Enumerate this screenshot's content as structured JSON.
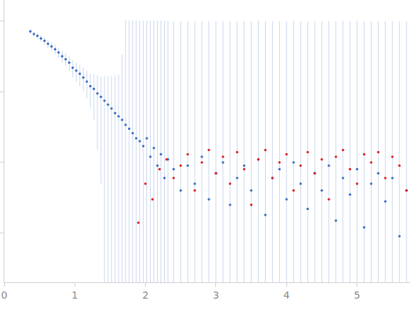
{
  "chart_data": {
    "type": "scatter",
    "log": "y",
    "grid": false,
    "tick_labels": "x",
    "xlim": [
      0,
      5.75
    ],
    "xticks": [
      0,
      1,
      2,
      3,
      4,
      5
    ],
    "ylim": [
      0.0002,
      2
    ],
    "yticks": [
      0.001,
      0.01,
      0.1,
      1
    ],
    "series": [
      {
        "color": "#3a6fc4",
        "marker": "circle",
        "x": [
          0.37,
          0.42,
          0.47,
          0.52,
          0.57,
          0.62,
          0.67,
          0.72,
          0.77,
          0.82,
          0.87,
          0.92,
          0.97,
          1.02,
          1.07,
          1.12,
          1.17,
          1.22,
          1.27,
          1.32,
          1.37,
          1.42,
          1.47,
          1.52,
          1.57,
          1.62,
          1.67,
          1.72,
          1.77,
          1.82,
          1.87,
          1.92,
          1.97,
          2.02,
          2.07,
          2.12,
          2.17,
          2.22,
          2.27,
          2.32,
          2.4,
          2.5,
          2.6,
          2.7,
          2.8,
          2.9,
          3.0,
          3.1,
          3.2,
          3.3,
          3.4,
          3.5,
          3.6,
          3.7,
          3.8,
          3.9,
          4.0,
          4.1,
          4.2,
          4.3,
          4.4,
          4.5,
          4.6,
          4.7,
          4.8,
          4.9,
          5.0,
          5.1,
          5.2,
          5.3,
          5.4,
          5.5,
          5.6,
          5.7
        ],
        "values": [
          0.72,
          0.66,
          0.62,
          0.57,
          0.53,
          0.48,
          0.44,
          0.4,
          0.36,
          0.32,
          0.29,
          0.26,
          0.22,
          0.2,
          0.18,
          0.16,
          0.14,
          0.12,
          0.11,
          0.095,
          0.085,
          0.075,
          0.066,
          0.058,
          0.05,
          0.045,
          0.04,
          0.034,
          0.03,
          0.026,
          0.022,
          0.02,
          0.017,
          0.022,
          0.012,
          0.016,
          0.009,
          0.013,
          0.006,
          0.011,
          0.008,
          0.004,
          0.009,
          0.005,
          0.012,
          0.003,
          0.007,
          0.01,
          0.0025,
          0.006,
          0.009,
          0.004,
          0.011,
          0.0018,
          0.006,
          0.008,
          0.003,
          0.01,
          0.005,
          0.0022,
          0.007,
          0.004,
          0.009,
          0.0015,
          0.006,
          0.0035,
          0.008,
          0.0012,
          0.005,
          0.007,
          0.0028,
          0.006,
          0.0009,
          0.004
        ],
        "error": [
          0.06,
          0.06,
          0.06,
          0.06,
          0.06,
          0.06,
          0.06,
          0.06,
          0.06,
          0.06,
          0.06,
          0.06,
          0.06,
          0.06,
          0.06,
          0.06,
          0.06,
          0.06,
          0.07,
          0.08,
          0.08,
          0.09,
          0.1,
          0.11,
          0.12,
          0.13,
          0.3,
          1,
          1,
          1,
          1,
          1,
          1,
          1,
          1,
          1,
          1,
          1,
          1,
          1,
          1,
          1,
          1,
          1,
          1,
          1,
          1,
          1,
          1,
          1,
          1,
          1,
          1,
          1,
          1,
          1,
          1,
          1,
          1,
          1,
          1,
          1,
          1,
          1,
          1,
          1,
          1,
          1,
          1,
          1,
          1,
          1,
          1,
          1
        ],
        "error_color": "#c9d6ee"
      },
      {
        "color": "#e02020",
        "marker": "circle",
        "x": [
          1.9,
          2.0,
          2.1,
          2.2,
          2.3,
          2.4,
          2.5,
          2.6,
          2.7,
          2.8,
          2.9,
          3.0,
          3.1,
          3.2,
          3.3,
          3.4,
          3.5,
          3.6,
          3.7,
          3.8,
          3.9,
          4.0,
          4.1,
          4.2,
          4.3,
          4.4,
          4.5,
          4.6,
          4.7,
          4.8,
          4.9,
          5.0,
          5.1,
          5.2,
          5.3,
          5.4,
          5.5,
          5.6,
          5.7
        ],
        "values": [
          0.0014,
          0.005,
          0.003,
          0.008,
          0.011,
          0.006,
          0.009,
          0.013,
          0.004,
          0.01,
          0.015,
          0.007,
          0.012,
          0.005,
          0.014,
          0.008,
          0.0025,
          0.011,
          0.015,
          0.006,
          0.01,
          0.013,
          0.004,
          0.009,
          0.014,
          0.007,
          0.011,
          0.003,
          0.012,
          0.015,
          0.008,
          0.005,
          0.013,
          0.01,
          0.014,
          0.006,
          0.012,
          0.009,
          0.004
        ]
      }
    ]
  }
}
